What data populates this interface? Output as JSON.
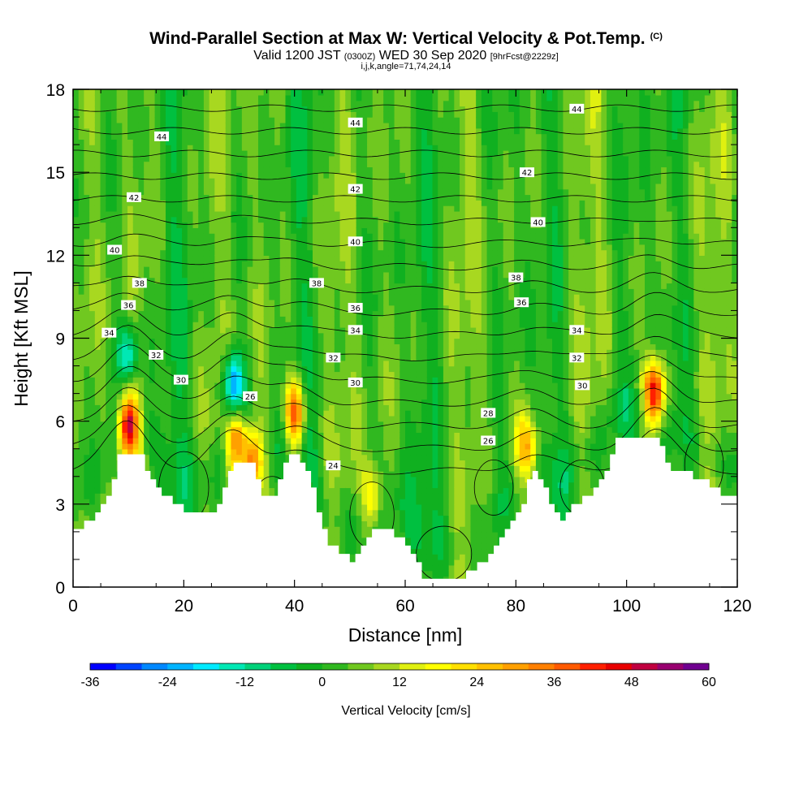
{
  "header": {
    "title": "Wind-Parallel Section at Max W: Vertical Velocity & Pot.Temp.",
    "title_mark": "(C)",
    "valid_prefix": "Valid 1200 JST",
    "valid_utc": "(0300Z)",
    "valid_date": "WED 30 Sep 2020",
    "forecast": "[9hrFcst@2229z]",
    "indices": "i,j,k,angle=71,74,24,14"
  },
  "chart_data": {
    "type": "heatmap",
    "xlabel": "Distance [nm]",
    "ylabel": "Height [Kft MSL]",
    "xlim": [
      0,
      120
    ],
    "ylim": [
      0,
      18
    ],
    "x_ticks": [
      "0",
      "20",
      "40",
      "60",
      "80",
      "100",
      "120"
    ],
    "y_ticks": [
      "0",
      "3",
      "6",
      "9",
      "12",
      "15",
      "18"
    ],
    "colorbar": {
      "title": "Vertical Velocity [cm/s]",
      "tick_labels": [
        "-36",
        "-24",
        "-12",
        "0",
        "12",
        "24",
        "36",
        "48",
        "60"
      ],
      "range": [
        -36,
        60
      ],
      "interval": 4,
      "colors": [
        "#0000ff",
        "#0044ff",
        "#0088ff",
        "#00b4ff",
        "#00eaff",
        "#00e8b4",
        "#00d27a",
        "#00c040",
        "#10b020",
        "#30b820",
        "#70c820",
        "#a8d820",
        "#e0f010",
        "#ffff00",
        "#ffe000",
        "#ffc000",
        "#ffa000",
        "#ff8000",
        "#ff5a00",
        "#ff2000",
        "#e80000",
        "#c00040",
        "#980070",
        "#700090"
      ]
    },
    "terrain_kft": [
      [
        0,
        2
      ],
      [
        2,
        2.3
      ],
      [
        4,
        2.7
      ],
      [
        6,
        3.3
      ],
      [
        7,
        4
      ],
      [
        8,
        4.9
      ],
      [
        10,
        4.9
      ],
      [
        12,
        4.8
      ],
      [
        13,
        4.2
      ],
      [
        14,
        3.8
      ],
      [
        16,
        3.4
      ],
      [
        18,
        3
      ],
      [
        20,
        2.7
      ],
      [
        22,
        2.7
      ],
      [
        24,
        2.6
      ],
      [
        25,
        2.7
      ],
      [
        26,
        3
      ],
      [
        27,
        3.6
      ],
      [
        28,
        4.3
      ],
      [
        30,
        4.6
      ],
      [
        32,
        4.4
      ],
      [
        33,
        3.8
      ],
      [
        34,
        3.3
      ],
      [
        36,
        3.3
      ],
      [
        37,
        3.8
      ],
      [
        38,
        4.6
      ],
      [
        40,
        4.8
      ],
      [
        42,
        4.1
      ],
      [
        43,
        3.5
      ],
      [
        44,
        2.8
      ],
      [
        45,
        2.2
      ],
      [
        46,
        1.6
      ],
      [
        48,
        1.2
      ],
      [
        50,
        1
      ],
      [
        52,
        1.4
      ],
      [
        54,
        2
      ],
      [
        57,
        2
      ],
      [
        58,
        1.8
      ],
      [
        60,
        1.5
      ],
      [
        62,
        1
      ],
      [
        63,
        0.4
      ],
      [
        65,
        0.3
      ],
      [
        70,
        0.3
      ],
      [
        72,
        0.6
      ],
      [
        74,
        1
      ],
      [
        76,
        1.4
      ],
      [
        78,
        2
      ],
      [
        80,
        2.6
      ],
      [
        81,
        3
      ],
      [
        82,
        3.8
      ],
      [
        83,
        4.2
      ],
      [
        84,
        4
      ],
      [
        85,
        3.6
      ],
      [
        86,
        3
      ],
      [
        87,
        2.6
      ],
      [
        88,
        2.4
      ],
      [
        89,
        2.6
      ],
      [
        90,
        3
      ],
      [
        92,
        3.2
      ],
      [
        94,
        3.6
      ],
      [
        96,
        4.2
      ],
      [
        97,
        4.9
      ],
      [
        98,
        5.5
      ],
      [
        104,
        5.5
      ],
      [
        105,
        5.3
      ],
      [
        106,
        5
      ],
      [
        107,
        4.6
      ],
      [
        108,
        4.3
      ],
      [
        110,
        4.2
      ],
      [
        112,
        4
      ],
      [
        114,
        3.8
      ],
      [
        116,
        3.5
      ],
      [
        118,
        3.3
      ],
      [
        120,
        3.3
      ]
    ],
    "updraft_peaks_cm_s": [
      {
        "x": 10,
        "z": 5.9,
        "w": 52
      },
      {
        "x": 105,
        "z": 7,
        "w": 50
      },
      {
        "x": 40,
        "z": 6.3,
        "w": 44
      },
      {
        "x": 32.5,
        "z": 4.6,
        "w": 36
      },
      {
        "x": 29.5,
        "z": 5.4,
        "w": 32
      },
      {
        "x": 54,
        "z": 3.3,
        "w": 24
      },
      {
        "x": 82,
        "z": 5.1,
        "w": 30
      }
    ],
    "downdraft_peaks_cm_s": [
      {
        "x": 29,
        "z": 7.3,
        "w": -32
      },
      {
        "x": 10,
        "z": 8.4,
        "w": -20
      }
    ],
    "theta_contour_labels": [
      {
        "value": "44",
        "x": 16,
        "z": 16.3
      },
      {
        "value": "44",
        "x": 51,
        "z": 16.8
      },
      {
        "value": "44",
        "x": 91,
        "z": 17.3
      },
      {
        "value": "42",
        "x": 11,
        "z": 14.1
      },
      {
        "value": "42",
        "x": 51,
        "z": 14.4
      },
      {
        "value": "42",
        "x": 82,
        "z": 15
      },
      {
        "value": "40",
        "x": 7.5,
        "z": 12.2
      },
      {
        "value": "40",
        "x": 51,
        "z": 12.5
      },
      {
        "value": "40",
        "x": 84,
        "z": 13.2
      },
      {
        "value": "38",
        "x": 12,
        "z": 11
      },
      {
        "value": "38",
        "x": 44,
        "z": 11
      },
      {
        "value": "38",
        "x": 80,
        "z": 11.2
      },
      {
        "value": "36",
        "x": 10,
        "z": 10.2
      },
      {
        "value": "36",
        "x": 51,
        "z": 10.1
      },
      {
        "value": "36",
        "x": 81,
        "z": 10.3
      },
      {
        "value": "34",
        "x": 6.5,
        "z": 9.2
      },
      {
        "value": "34",
        "x": 51,
        "z": 9.3
      },
      {
        "value": "34",
        "x": 91,
        "z": 9.3
      },
      {
        "value": "32",
        "x": 15,
        "z": 8.4
      },
      {
        "value": "32",
        "x": 47,
        "z": 8.3
      },
      {
        "value": "32",
        "x": 91,
        "z": 8.3
      },
      {
        "value": "30",
        "x": 19.5,
        "z": 7.5
      },
      {
        "value": "30",
        "x": 51,
        "z": 7.4
      },
      {
        "value": "30",
        "x": 92,
        "z": 7.3
      },
      {
        "value": "28",
        "x": 75,
        "z": 6.3
      },
      {
        "value": "26",
        "x": 32,
        "z": 6.9
      },
      {
        "value": "26",
        "x": 75,
        "z": 5.3
      },
      {
        "value": "24",
        "x": 47,
        "z": 4.4
      }
    ]
  }
}
